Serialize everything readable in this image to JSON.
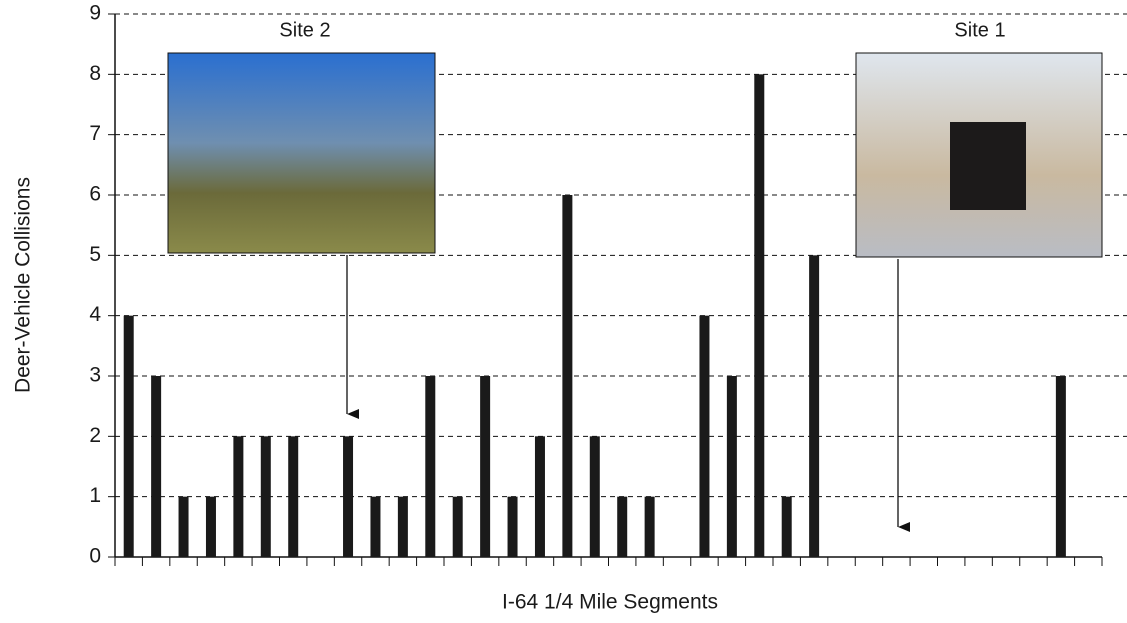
{
  "chart_data": {
    "type": "bar",
    "x_label": "I-64 1/4 Mile Segments",
    "y_label": "Deer-Vehicle Collisions",
    "annotations": [
      "Site 2",
      "Site 1"
    ],
    "categories": [
      null,
      null,
      null,
      null,
      null,
      null,
      null,
      null,
      null,
      null,
      null,
      null,
      null,
      null,
      null,
      null,
      null,
      null,
      null,
      null,
      null,
      null,
      null,
      null,
      null,
      null,
      null,
      null,
      null,
      null,
      null,
      null,
      null,
      null,
      null,
      null
    ],
    "values": [
      4,
      3,
      1,
      1,
      2,
      2,
      2,
      0,
      2,
      1,
      1,
      3,
      1,
      3,
      1,
      2,
      6,
      2,
      1,
      1,
      0,
      4,
      3,
      8,
      1,
      5,
      0,
      0,
      0,
      0,
      0,
      0,
      0,
      0,
      3,
      0
    ],
    "color": "#1a1a1a",
    "ylim": [
      0,
      9
    ],
    "yticks": [
      0,
      1,
      2,
      3,
      4,
      5,
      6,
      7,
      8,
      9
    ],
    "grid": true
  }
}
